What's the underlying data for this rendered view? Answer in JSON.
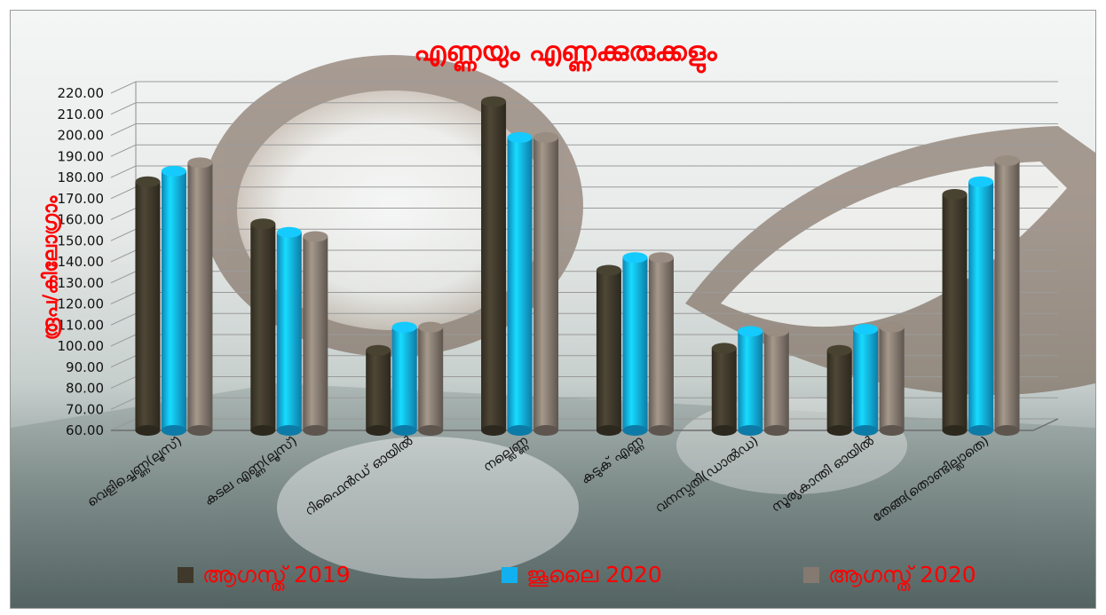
{
  "chart_data": {
    "type": "bar",
    "title": "എണ്ണയും എണ്ണക്കുരുക്കളും",
    "ylabel": "രൂപ/കിലോഗ്രാം",
    "xlabel": "",
    "ylim": [
      60,
      220
    ],
    "yticks": [
      "60.00",
      "70.00",
      "80.00",
      "90.00",
      "100.00",
      "110.00",
      "120.00",
      "130.00",
      "140.00",
      "150.00",
      "160.00",
      "170.00",
      "180.00",
      "190.00",
      "200.00",
      "210.00",
      "220.00"
    ],
    "grid": true,
    "legend_position": "bottom",
    "categories": [
      "വെളിച്ചെണ്ണ(ലൂസ്)",
      "കടല എണ്ണ(ലൂസ്)",
      "റിഫൈൻഡ് ഓയിൽ",
      "നല്ലെണ്ണ",
      "കടുക് എണ്ണ",
      "വനസ്പതി(ഡാൽഡ)",
      "സൂര്യകാന്തി ഓയിൽ",
      "തേങ്ങ(തൊണ്ടില്ലാതെ)"
    ],
    "series": [
      {
        "name": "ആഗസ്ത് 2019",
        "color": "#3f392b",
        "values": [
          178,
          158,
          98,
          216,
          136,
          99,
          98,
          172
        ]
      },
      {
        "name": "ജൂലൈ 2020",
        "color": "#12b0ee",
        "values": [
          183,
          154,
          109,
          199,
          142,
          107,
          108,
          178
        ]
      },
      {
        "name": "ആഗസ്ത് 2020",
        "color": "#857a70",
        "values": [
          187,
          152,
          109,
          199,
          142,
          107,
          109,
          188
        ]
      }
    ]
  }
}
